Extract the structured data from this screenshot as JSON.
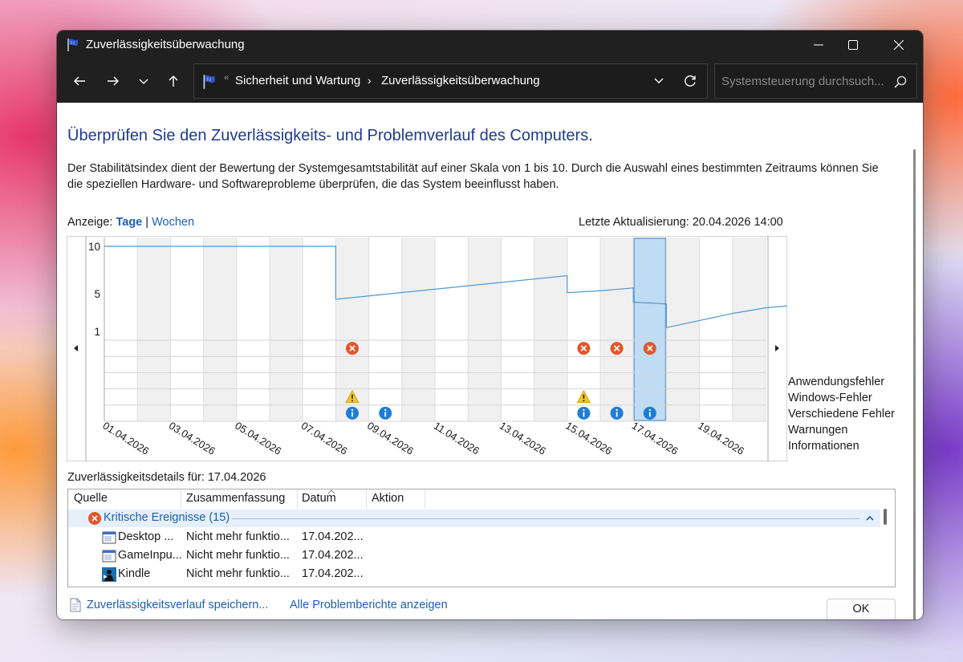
{
  "window": {
    "title": "Zuverlässigkeitsüberwachung"
  },
  "address": {
    "crumbs": [
      "Sicherheit und Wartung",
      "Zuverlässigkeitsüberwachung"
    ],
    "separator": "«",
    "crumb_arrow": "›"
  },
  "search": {
    "placeholder": "Systemsteuerung durchsuch..."
  },
  "page": {
    "heading": "Überprüfen Sie den Zuverlässigkeits- und Problemverlauf des Computers.",
    "description": "Der Stabilitätsindex dient der Bewertung der Systemgesamtstabilität auf einer Skala von 1 bis 10. Durch die Auswahl eines bestimmten Zeitraums können Sie die speziellen Hardware- und Softwareprobleme überprüfen, die das System beeinflusst haben.",
    "view_label": "Anzeige:",
    "view_days": "Tage",
    "view_sep": "|",
    "view_weeks": "Wochen",
    "last_update": "Letzte Aktualisierung: 20.04.2026 14:00"
  },
  "chart_data": {
    "type": "line",
    "ylim": [
      1,
      10
    ],
    "y_ticks": [
      "10",
      "5",
      "1"
    ],
    "x_labels": [
      "01.04.2026",
      "03.04.2026",
      "05.04.2026",
      "07.04.2026",
      "09.04.2026",
      "11.04.2026",
      "13.04.2026",
      "15.04.2026",
      "17.04.2026",
      "19.04.2026"
    ],
    "categories": [
      "Anwendungsfehler",
      "Windows-Fehler",
      "Verschiedene Fehler",
      "Warnungen",
      "Informationen"
    ],
    "selected_day": 17,
    "stability_index": [
      {
        "day": 1,
        "y": 10.0
      },
      {
        "day": 5,
        "y": 10.0
      },
      {
        "day": 8,
        "y": 10.0
      },
      {
        "day": 8,
        "y": 4.4
      },
      {
        "day": 15,
        "y": 6.9
      },
      {
        "day": 15,
        "y": 5.1
      },
      {
        "day": 16,
        "y": 5.3
      },
      {
        "day": 17,
        "y": 5.6
      },
      {
        "day": 17,
        "y": 4.1
      },
      {
        "day": 18,
        "y": 3.9
      },
      {
        "day": 18,
        "y": 1.4
      },
      {
        "day": 20,
        "y": 2.9
      },
      {
        "day": 21,
        "y": 3.5
      },
      {
        "day": 22,
        "y": 3.8
      }
    ],
    "events": {
      "Anwendungsfehler": [
        8,
        15,
        16,
        17
      ],
      "Warnungen": [
        8,
        15
      ],
      "Informationen": [
        8,
        9,
        15,
        16,
        17
      ]
    }
  },
  "details": {
    "label": "Zuverlässigkeitsdetails für: 17.04.2026",
    "columns": [
      "Quelle",
      "Zusammenfassung",
      "Datum",
      "Aktion"
    ],
    "group": "Kritische Ereignisse (15)",
    "rows": [
      {
        "source": "Desktop ...",
        "summary": "Nicht mehr funktio...",
        "date": "17.04.202...",
        "icon": "app-window-icon"
      },
      {
        "source": "GameInpu...",
        "summary": "Nicht mehr funktio...",
        "date": "17.04.202...",
        "icon": "app-window-icon"
      },
      {
        "source": "Kindle",
        "summary": "Nicht mehr funktio...",
        "date": "17.04.202...",
        "icon": "kindle-icon"
      }
    ]
  },
  "footer": {
    "save_link": "Zuverlässigkeitsverlauf speichern...",
    "reports_link": "Alle Problemberichte anzeigen",
    "ok": "OK"
  },
  "colors": {
    "heading": "#1e3c8c",
    "link": "#1c5fb2",
    "line": "#4a9ad8",
    "selection": "#bfdcf5",
    "error": "#e2562a",
    "info": "#1f7dd6",
    "warning": "#f2c521"
  }
}
